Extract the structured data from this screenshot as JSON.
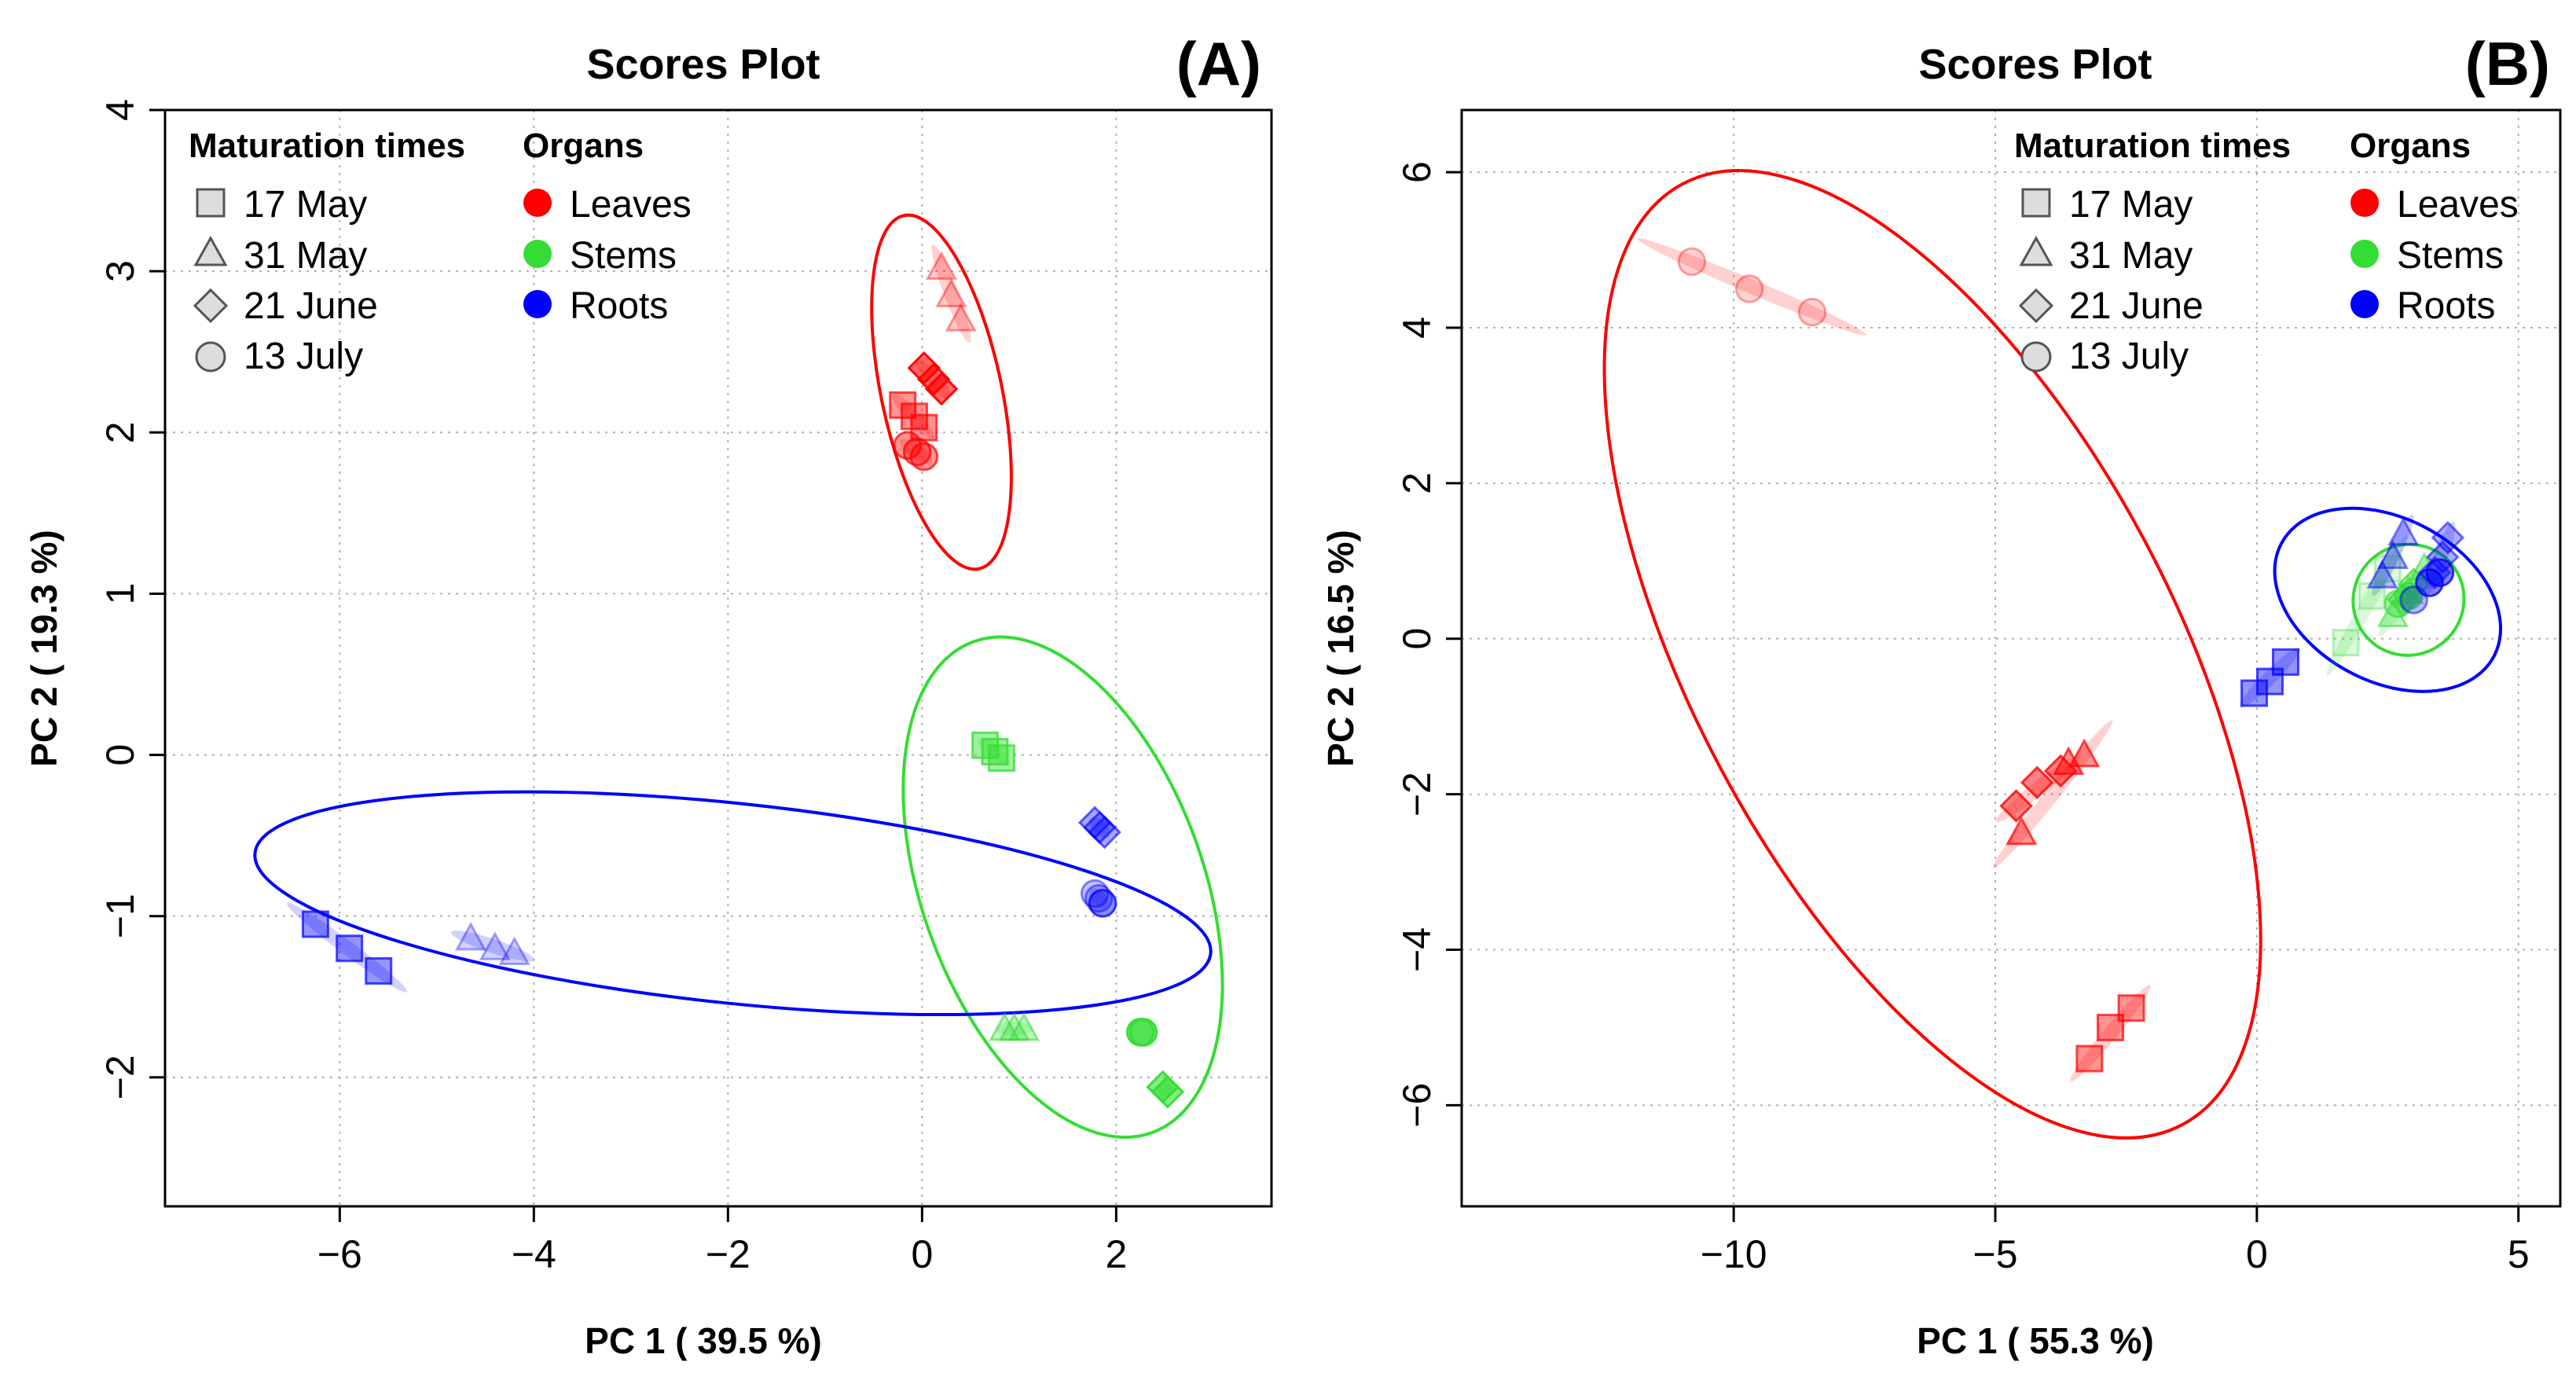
{
  "legend": {
    "times_title": "Maturation times",
    "organs_title": "Organs",
    "times": [
      {
        "label": "17 May",
        "shape": "square"
      },
      {
        "label": "31 May",
        "shape": "triangle"
      },
      {
        "label": "21 June",
        "shape": "diamond"
      },
      {
        "label": "13 July",
        "shape": "circle"
      }
    ],
    "organs": [
      {
        "label": "Leaves",
        "color": "#ff0000"
      },
      {
        "label": "Stems",
        "color": "#33dd33"
      },
      {
        "label": "Roots",
        "color": "#0000ff"
      }
    ]
  },
  "chart_data": [
    {
      "type": "scatter",
      "panel": "(A)",
      "title": "Scores Plot",
      "xlabel": "PC 1 ( 39.5 %)",
      "ylabel": "PC 2 ( 19.3 %)",
      "xlim": [
        -7.8,
        3.6
      ],
      "ylim": [
        -2.8,
        4.0
      ],
      "xticks": [
        -6,
        -4,
        -2,
        0,
        2
      ],
      "yticks": [
        -2,
        -1,
        0,
        1,
        2,
        3,
        4
      ],
      "grid": true,
      "ellipses": [
        {
          "organ": "Leaves",
          "cx": 0.2,
          "cy": 2.25,
          "rx": 0.62,
          "ry": 1.12,
          "angle": -12
        },
        {
          "organ": "Stems",
          "cx": 1.45,
          "cy": -0.82,
          "rx": 1.45,
          "ry": 1.62,
          "angle": -20
        },
        {
          "organ": "Roots",
          "cx": -1.95,
          "cy": -0.92,
          "rx": 4.95,
          "ry": 0.62,
          "angle": 6
        }
      ],
      "points": [
        {
          "organ": "Leaves",
          "time": "31 May",
          "x": 0.2,
          "y": 3.02,
          "alpha": 0.3
        },
        {
          "organ": "Leaves",
          "time": "31 May",
          "x": 0.3,
          "y": 2.85,
          "alpha": 0.3
        },
        {
          "organ": "Leaves",
          "time": "31 May",
          "x": 0.4,
          "y": 2.7,
          "alpha": 0.3
        },
        {
          "organ": "Leaves",
          "time": "21 June",
          "x": 0.02,
          "y": 2.4,
          "alpha": 0.85
        },
        {
          "organ": "Leaves",
          "time": "21 June",
          "x": 0.12,
          "y": 2.33,
          "alpha": 0.85
        },
        {
          "organ": "Leaves",
          "time": "21 June",
          "x": 0.2,
          "y": 2.27,
          "alpha": 0.85
        },
        {
          "organ": "Leaves",
          "time": "17 May",
          "x": -0.2,
          "y": 2.17,
          "alpha": 0.6
        },
        {
          "organ": "Leaves",
          "time": "17 May",
          "x": -0.08,
          "y": 2.1,
          "alpha": 0.6
        },
        {
          "organ": "Leaves",
          "time": "17 May",
          "x": 0.02,
          "y": 2.03,
          "alpha": 0.6
        },
        {
          "organ": "Leaves",
          "time": "13 July",
          "x": -0.15,
          "y": 1.92,
          "alpha": 0.6
        },
        {
          "organ": "Leaves",
          "time": "13 July",
          "x": -0.05,
          "y": 1.88,
          "alpha": 0.6
        },
        {
          "organ": "Leaves",
          "time": "13 July",
          "x": 0.02,
          "y": 1.85,
          "alpha": 0.6
        },
        {
          "organ": "Stems",
          "time": "17 May",
          "x": 0.65,
          "y": 0.06,
          "alpha": 0.65
        },
        {
          "organ": "Stems",
          "time": "17 May",
          "x": 0.75,
          "y": 0.02,
          "alpha": 0.65
        },
        {
          "organ": "Stems",
          "time": "17 May",
          "x": 0.82,
          "y": -0.02,
          "alpha": 0.65
        },
        {
          "organ": "Stems",
          "time": "31 May",
          "x": 0.85,
          "y": -1.7,
          "alpha": 0.45
        },
        {
          "organ": "Stems",
          "time": "31 May",
          "x": 0.95,
          "y": -1.7,
          "alpha": 0.45
        },
        {
          "organ": "Stems",
          "time": "31 May",
          "x": 1.05,
          "y": -1.7,
          "alpha": 0.45
        },
        {
          "organ": "Stems",
          "time": "13 July",
          "x": 2.25,
          "y": -1.72,
          "alpha": 0.85
        },
        {
          "organ": "Stems",
          "time": "13 July",
          "x": 2.28,
          "y": -1.72,
          "alpha": 0.85
        },
        {
          "organ": "Stems",
          "time": "21 June",
          "x": 2.48,
          "y": -2.06,
          "alpha": 0.85
        },
        {
          "organ": "Stems",
          "time": "21 June",
          "x": 2.53,
          "y": -2.09,
          "alpha": 0.85
        },
        {
          "organ": "Roots",
          "time": "21 June",
          "x": 1.78,
          "y": -0.42,
          "alpha": 0.5
        },
        {
          "organ": "Roots",
          "time": "21 June",
          "x": 1.83,
          "y": -0.45,
          "alpha": 0.5
        },
        {
          "organ": "Roots",
          "time": "21 June",
          "x": 1.88,
          "y": -0.48,
          "alpha": 0.5
        },
        {
          "organ": "Roots",
          "time": "13 July",
          "x": 1.78,
          "y": -0.86,
          "alpha": 0.35
        },
        {
          "organ": "Roots",
          "time": "13 July",
          "x": 1.82,
          "y": -0.89,
          "alpha": 0.35
        },
        {
          "organ": "Roots",
          "time": "13 July",
          "x": 1.86,
          "y": -0.92,
          "alpha": 0.65
        },
        {
          "organ": "Roots",
          "time": "17 May",
          "x": -6.25,
          "y": -1.05,
          "alpha": 0.6
        },
        {
          "organ": "Roots",
          "time": "17 May",
          "x": -5.9,
          "y": -1.2,
          "alpha": 0.6
        },
        {
          "organ": "Roots",
          "time": "17 May",
          "x": -5.6,
          "y": -1.34,
          "alpha": 0.6
        },
        {
          "organ": "Roots",
          "time": "31 May",
          "x": -4.65,
          "y": -1.14,
          "alpha": 0.25
        },
        {
          "organ": "Roots",
          "time": "31 May",
          "x": -4.4,
          "y": -1.2,
          "alpha": 0.25
        },
        {
          "organ": "Roots",
          "time": "31 May",
          "x": -4.2,
          "y": -1.23,
          "alpha": 0.25
        }
      ]
    },
    {
      "type": "scatter",
      "panel": "(B)",
      "title": "Scores Plot",
      "xlabel": "PC 1 ( 55.3 %)",
      "ylabel": "PC 2 ( 16.5 %)",
      "xlim": [
        -15.2,
        5.8
      ],
      "ylim": [
        -7.3,
        6.8
      ],
      "xticks": [
        -10,
        -5,
        0,
        5
      ],
      "yticks": [
        -6,
        -4,
        -2,
        0,
        2,
        4,
        6
      ],
      "grid": true,
      "ellipses": [
        {
          "organ": "Leaves",
          "cx": -6.2,
          "cy": -0.2,
          "rx": 4.6,
          "ry": 6.85,
          "angle": -28
        },
        {
          "organ": "Stems",
          "cx": 2.9,
          "cy": 0.5,
          "rx": 1.05,
          "ry": 0.72,
          "angle": 45
        },
        {
          "organ": "Roots",
          "cx": 2.5,
          "cy": 0.5,
          "rx": 2.3,
          "ry": 1.05,
          "angle": 28
        }
      ],
      "points": [
        {
          "organ": "Leaves",
          "time": "13 July",
          "x": -10.8,
          "y": 4.85,
          "alpha": 0.25
        },
        {
          "organ": "Leaves",
          "time": "13 July",
          "x": -9.7,
          "y": 4.5,
          "alpha": 0.25
        },
        {
          "organ": "Leaves",
          "time": "13 July",
          "x": -8.5,
          "y": 4.2,
          "alpha": 0.25
        },
        {
          "organ": "Leaves",
          "time": "21 June",
          "x": -4.6,
          "y": -2.15,
          "alpha": 0.7
        },
        {
          "organ": "Leaves",
          "time": "21 June",
          "x": -4.2,
          "y": -1.85,
          "alpha": 0.7
        },
        {
          "organ": "Leaves",
          "time": "21 June",
          "x": -3.75,
          "y": -1.7,
          "alpha": 0.7
        },
        {
          "organ": "Leaves",
          "time": "31 May",
          "x": -4.5,
          "y": -2.5,
          "alpha": 0.6
        },
        {
          "organ": "Leaves",
          "time": "31 May",
          "x": -3.6,
          "y": -1.6,
          "alpha": 0.6
        },
        {
          "organ": "Leaves",
          "time": "31 May",
          "x": -3.3,
          "y": -1.5,
          "alpha": 0.6
        },
        {
          "organ": "Leaves",
          "time": "17 May",
          "x": -3.2,
          "y": -5.4,
          "alpha": 0.6
        },
        {
          "organ": "Leaves",
          "time": "17 May",
          "x": -2.8,
          "y": -5.0,
          "alpha": 0.6
        },
        {
          "organ": "Leaves",
          "time": "17 May",
          "x": -2.4,
          "y": -4.75,
          "alpha": 0.6
        },
        {
          "organ": "Stems",
          "time": "17 May",
          "x": 1.7,
          "y": -0.05,
          "alpha": 0.25
        },
        {
          "organ": "Stems",
          "time": "17 May",
          "x": 2.2,
          "y": 0.55,
          "alpha": 0.25
        },
        {
          "organ": "Stems",
          "time": "17 May",
          "x": 2.5,
          "y": 0.9,
          "alpha": 0.25
        },
        {
          "organ": "Stems",
          "time": "31 May",
          "x": 2.6,
          "y": 0.3,
          "alpha": 0.45
        },
        {
          "organ": "Stems",
          "time": "31 May",
          "x": 2.9,
          "y": 0.6,
          "alpha": 0.45
        },
        {
          "organ": "Stems",
          "time": "31 May",
          "x": 3.2,
          "y": 0.9,
          "alpha": 0.45
        },
        {
          "organ": "Stems",
          "time": "21 June",
          "x": 2.8,
          "y": 0.5,
          "alpha": 0.6
        },
        {
          "organ": "Stems",
          "time": "21 June",
          "x": 3.0,
          "y": 0.7,
          "alpha": 0.6
        },
        {
          "organ": "Stems",
          "time": "13 July",
          "x": 2.7,
          "y": 0.45,
          "alpha": 0.55
        },
        {
          "organ": "Stems",
          "time": "13 July",
          "x": 2.9,
          "y": 0.55,
          "alpha": 0.55
        },
        {
          "organ": "Roots",
          "time": "17 May",
          "x": -0.05,
          "y": -0.7,
          "alpha": 0.6
        },
        {
          "organ": "Roots",
          "time": "17 May",
          "x": 0.25,
          "y": -0.55,
          "alpha": 0.6
        },
        {
          "organ": "Roots",
          "time": "17 May",
          "x": 0.55,
          "y": -0.3,
          "alpha": 0.6
        },
        {
          "organ": "Roots",
          "time": "31 May",
          "x": 2.4,
          "y": 0.8,
          "alpha": 0.4
        },
        {
          "organ": "Roots",
          "time": "31 May",
          "x": 2.6,
          "y": 1.05,
          "alpha": 0.4
        },
        {
          "organ": "Roots",
          "time": "31 May",
          "x": 2.8,
          "y": 1.35,
          "alpha": 0.4
        },
        {
          "organ": "Roots",
          "time": "21 June",
          "x": 3.4,
          "y": 0.85,
          "alpha": 0.45
        },
        {
          "organ": "Roots",
          "time": "21 June",
          "x": 3.55,
          "y": 1.05,
          "alpha": 0.45
        },
        {
          "organ": "Roots",
          "time": "21 June",
          "x": 3.65,
          "y": 1.3,
          "alpha": 0.45
        },
        {
          "organ": "Roots",
          "time": "13 July",
          "x": 3.0,
          "y": 0.5,
          "alpha": 0.4
        },
        {
          "organ": "Roots",
          "time": "13 July",
          "x": 3.3,
          "y": 0.72,
          "alpha": 0.7
        },
        {
          "organ": "Roots",
          "time": "13 July",
          "x": 3.5,
          "y": 0.85,
          "alpha": 0.7
        }
      ]
    }
  ]
}
